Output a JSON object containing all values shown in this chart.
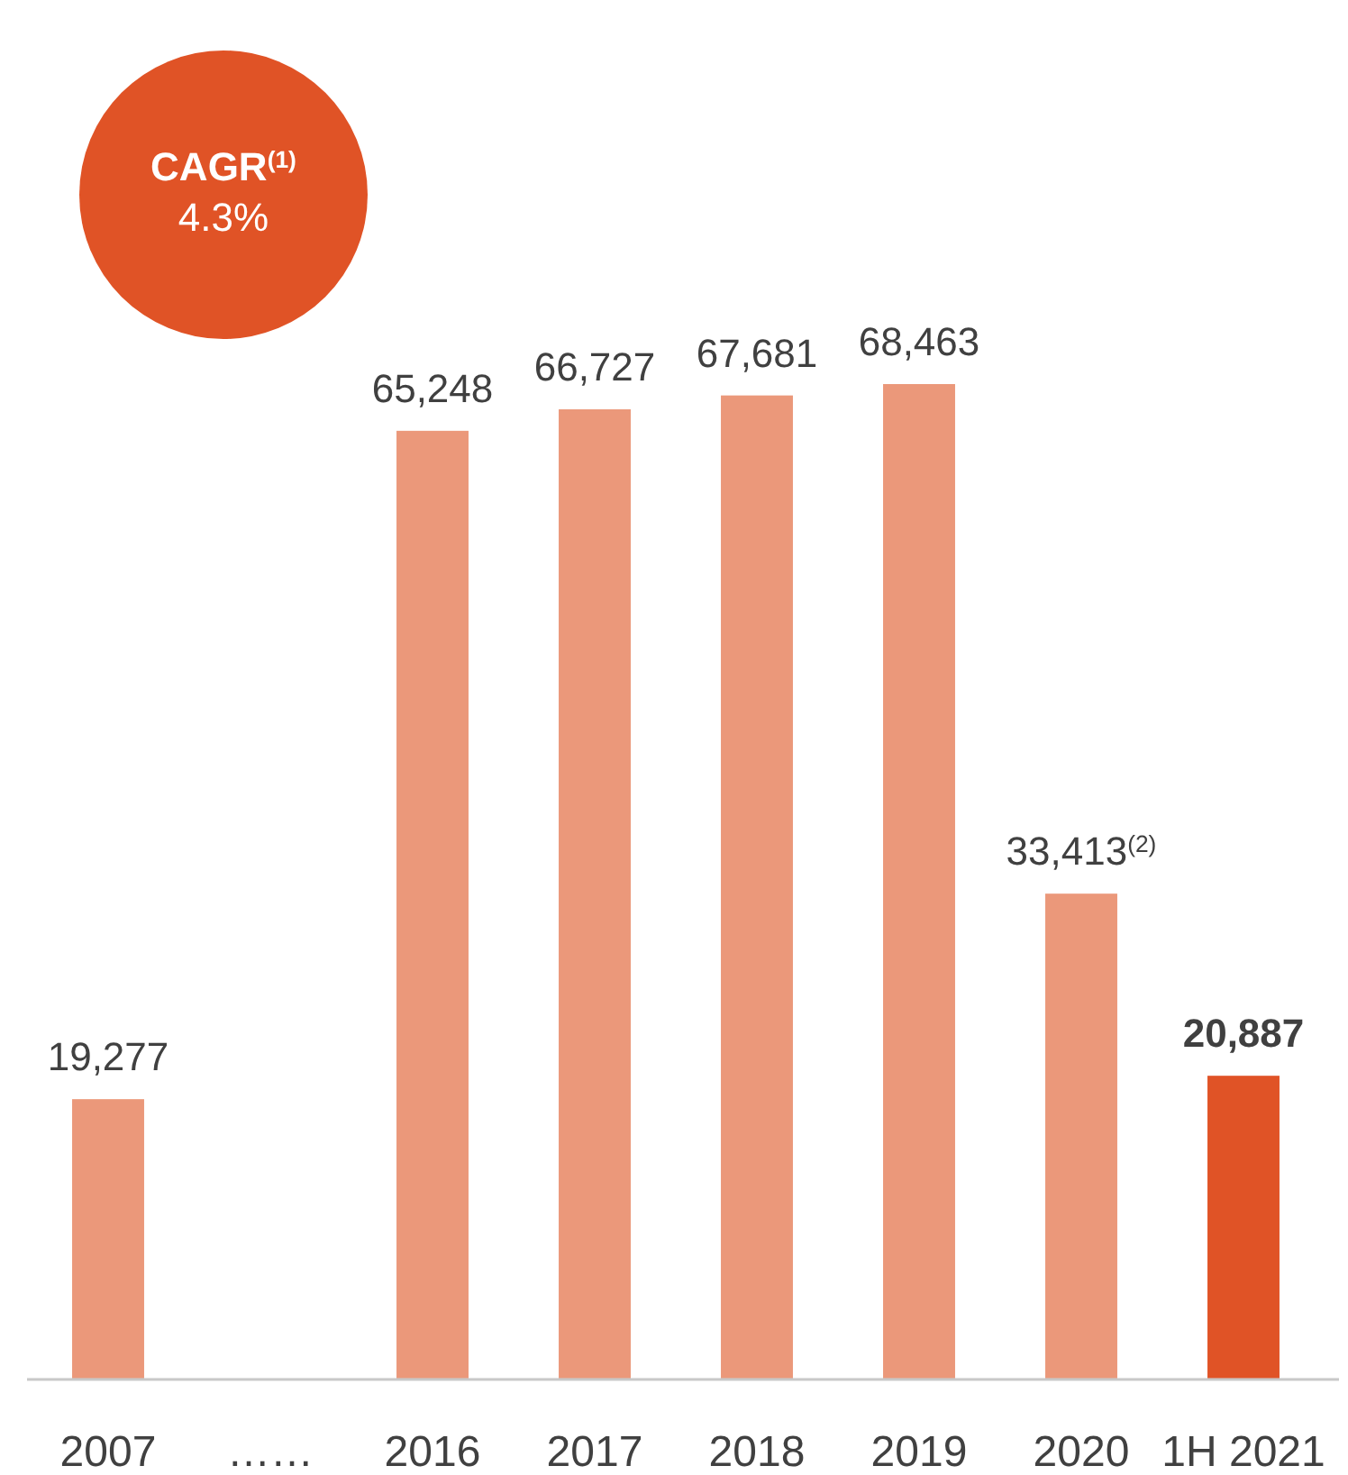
{
  "chart_data": {
    "type": "bar",
    "categories": [
      "2007",
      "……",
      "2016",
      "2017",
      "2018",
      "2019",
      "2020",
      "1H 2021"
    ],
    "values": [
      19277,
      null,
      65248,
      66727,
      67681,
      68463,
      33413,
      20887
    ],
    "colors": [
      "#eb987a",
      null,
      "#eb987a",
      "#eb987a",
      "#eb987a",
      "#eb987a",
      "#eb987a",
      "#e05326"
    ],
    "value_labels": [
      "19,277",
      null,
      "65,248",
      "66,727",
      "67,681",
      "68,463",
      "33,413$^{(2)}$",
      "20,887"
    ],
    "annotations": [
      "CAGR$^{(1)}$",
      "4.3%"
    ]
  }
}
